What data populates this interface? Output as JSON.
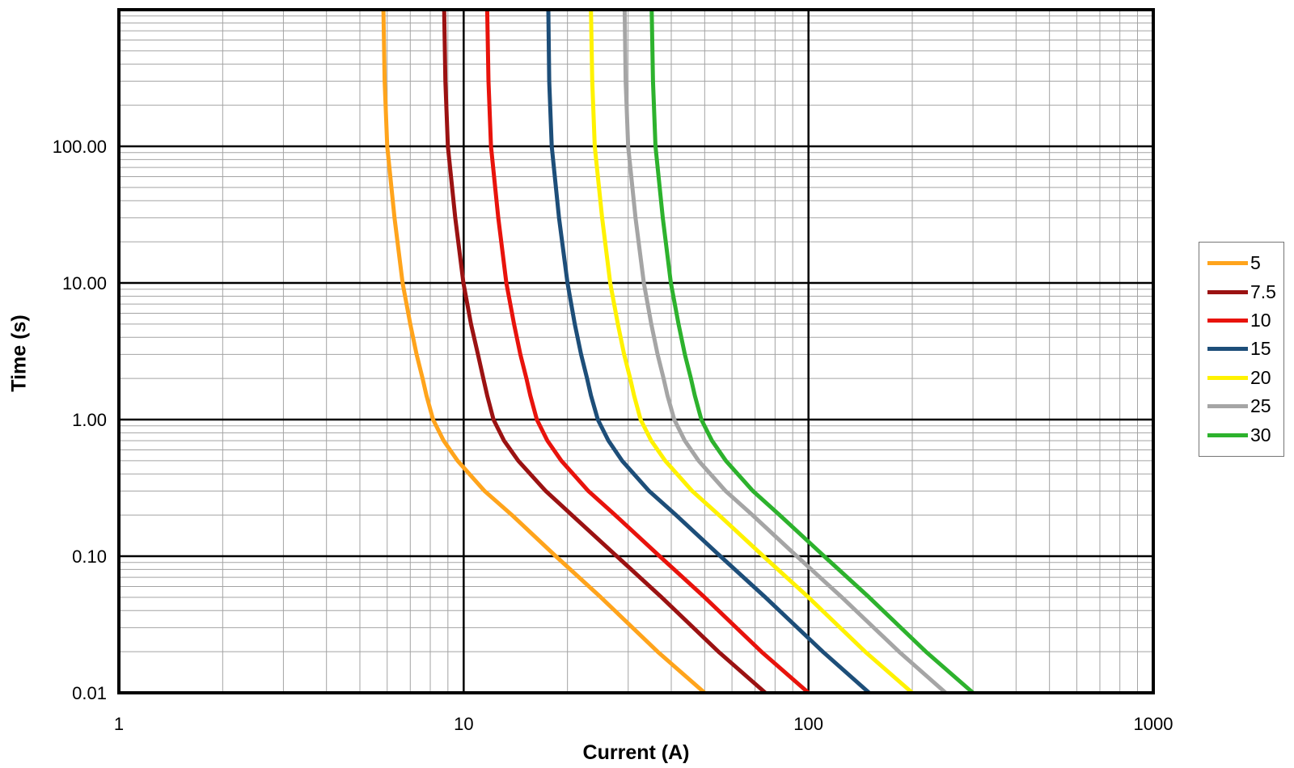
{
  "chart_data": {
    "type": "line",
    "title": "",
    "xlabel": "Current (A)",
    "ylabel": "Time (s)",
    "x_scale": "log",
    "y_scale": "log",
    "xlim": [
      1,
      1000
    ],
    "ylim": [
      0.01,
      1000
    ],
    "grid": "log major and minor, on",
    "grid_major_color": "#000000",
    "grid_minor_color": "#A3A3A3",
    "legend_position": "right-outside",
    "x_ticks": [
      {
        "v": 1,
        "label": "1"
      },
      {
        "v": 10,
        "label": "10"
      },
      {
        "v": 100,
        "label": "100"
      },
      {
        "v": 1000,
        "label": "1000"
      }
    ],
    "y_ticks": [
      {
        "v": 0.01,
        "label": "0.01"
      },
      {
        "v": 0.1,
        "label": "0.10"
      },
      {
        "v": 1,
        "label": "1.00"
      },
      {
        "v": 10,
        "label": "10.00"
      },
      {
        "v": 100,
        "label": "100.00"
      }
    ],
    "series": [
      {
        "name": "5",
        "rating_A": 5,
        "color": "#FFA41C",
        "points": [
          [
            5.85,
            1000
          ],
          [
            5.9,
            300
          ],
          [
            6.0,
            100
          ],
          [
            6.3,
            30
          ],
          [
            6.65,
            10
          ],
          [
            7.0,
            5
          ],
          [
            7.3,
            3
          ],
          [
            7.6,
            2
          ],
          [
            7.8,
            1.5
          ],
          [
            8.15,
            1
          ],
          [
            8.75,
            0.7
          ],
          [
            9.6,
            0.5
          ],
          [
            11.5,
            0.3
          ],
          [
            13.8,
            0.2
          ],
          [
            18.5,
            0.1
          ],
          [
            25,
            0.05
          ],
          [
            36.5,
            0.02
          ],
          [
            50,
            0.01
          ]
        ]
      },
      {
        "name": "7.5",
        "rating_A": 7.5,
        "color": "#9B1212",
        "points": [
          [
            8.78,
            1000
          ],
          [
            8.85,
            300
          ],
          [
            9.0,
            100
          ],
          [
            9.45,
            30
          ],
          [
            9.98,
            10
          ],
          [
            10.5,
            5
          ],
          [
            11.0,
            3
          ],
          [
            11.4,
            2
          ],
          [
            11.7,
            1.5
          ],
          [
            12.2,
            1
          ],
          [
            13.1,
            0.7
          ],
          [
            14.4,
            0.5
          ],
          [
            17.3,
            0.3
          ],
          [
            20.6,
            0.2
          ],
          [
            27.8,
            0.1
          ],
          [
            37.5,
            0.05
          ],
          [
            54.8,
            0.02
          ],
          [
            75,
            0.01
          ]
        ]
      },
      {
        "name": "10",
        "rating_A": 10,
        "color": "#E8130C",
        "points": [
          [
            11.7,
            1000
          ],
          [
            11.8,
            300
          ],
          [
            12.0,
            100
          ],
          [
            12.6,
            30
          ],
          [
            13.3,
            10
          ],
          [
            14.0,
            5
          ],
          [
            14.6,
            3
          ],
          [
            15.2,
            2
          ],
          [
            15.6,
            1.5
          ],
          [
            16.3,
            1
          ],
          [
            17.5,
            0.7
          ],
          [
            19.2,
            0.5
          ],
          [
            23.0,
            0.3
          ],
          [
            27.5,
            0.2
          ],
          [
            37.0,
            0.1
          ],
          [
            50,
            0.05
          ],
          [
            73,
            0.02
          ],
          [
            100,
            0.01
          ]
        ]
      },
      {
        "name": "15",
        "rating_A": 15,
        "color": "#1D4E79",
        "points": [
          [
            17.6,
            1000
          ],
          [
            17.7,
            300
          ],
          [
            18.0,
            100
          ],
          [
            18.9,
            30
          ],
          [
            20.0,
            10
          ],
          [
            21.0,
            5
          ],
          [
            21.9,
            3
          ],
          [
            22.8,
            2
          ],
          [
            23.4,
            1.5
          ],
          [
            24.5,
            1
          ],
          [
            26.3,
            0.7
          ],
          [
            28.8,
            0.5
          ],
          [
            34.5,
            0.3
          ],
          [
            41.3,
            0.2
          ],
          [
            55.5,
            0.1
          ],
          [
            75,
            0.05
          ],
          [
            110,
            0.02
          ],
          [
            150,
            0.01
          ]
        ]
      },
      {
        "name": "20",
        "rating_A": 20,
        "color": "#FFF200",
        "points": [
          [
            23.4,
            1000
          ],
          [
            23.6,
            300
          ],
          [
            24.0,
            100
          ],
          [
            25.2,
            30
          ],
          [
            26.6,
            10
          ],
          [
            28.0,
            5
          ],
          [
            29.2,
            3
          ],
          [
            30.4,
            2
          ],
          [
            31.2,
            1.5
          ],
          [
            32.6,
            1
          ],
          [
            35.0,
            0.7
          ],
          [
            38.4,
            0.5
          ],
          [
            46.0,
            0.3
          ],
          [
            55.0,
            0.2
          ],
          [
            74.0,
            0.1
          ],
          [
            100,
            0.05
          ],
          [
            146,
            0.02
          ],
          [
            200,
            0.01
          ]
        ]
      },
      {
        "name": "25",
        "rating_A": 25,
        "color": "#A5A5A5",
        "points": [
          [
            29.3,
            1000
          ],
          [
            29.5,
            300
          ],
          [
            30.0,
            100
          ],
          [
            31.5,
            30
          ],
          [
            33.3,
            10
          ],
          [
            35.0,
            5
          ],
          [
            36.5,
            3
          ],
          [
            38.0,
            2
          ],
          [
            39.0,
            1.5
          ],
          [
            40.8,
            1
          ],
          [
            43.8,
            0.7
          ],
          [
            48.0,
            0.5
          ],
          [
            57.5,
            0.3
          ],
          [
            68.8,
            0.2
          ],
          [
            92.5,
            0.1
          ],
          [
            125,
            0.05
          ],
          [
            183,
            0.02
          ],
          [
            250,
            0.01
          ]
        ]
      },
      {
        "name": "30",
        "rating_A": 30,
        "color": "#2DB22D",
        "points": [
          [
            35.1,
            1000
          ],
          [
            35.4,
            300
          ],
          [
            36.0,
            100
          ],
          [
            37.8,
            30
          ],
          [
            39.9,
            10
          ],
          [
            42.0,
            5
          ],
          [
            43.8,
            3
          ],
          [
            45.6,
            2
          ],
          [
            46.8,
            1.5
          ],
          [
            48.9,
            1
          ],
          [
            52.5,
            0.7
          ],
          [
            57.6,
            0.5
          ],
          [
            69.0,
            0.3
          ],
          [
            82.5,
            0.2
          ],
          [
            111,
            0.1
          ],
          [
            150,
            0.05
          ],
          [
            219,
            0.02
          ],
          [
            300,
            0.01
          ]
        ]
      }
    ]
  },
  "legend": {
    "entries": [
      {
        "label": "5",
        "color": "#FFA41C"
      },
      {
        "label": "7.5",
        "color": "#9B1212"
      },
      {
        "label": "10",
        "color": "#E8130C"
      },
      {
        "label": "15",
        "color": "#1D4E79"
      },
      {
        "label": "20",
        "color": "#FFF200"
      },
      {
        "label": "25",
        "color": "#A5A5A5"
      },
      {
        "label": "30",
        "color": "#2DB22D"
      }
    ]
  }
}
